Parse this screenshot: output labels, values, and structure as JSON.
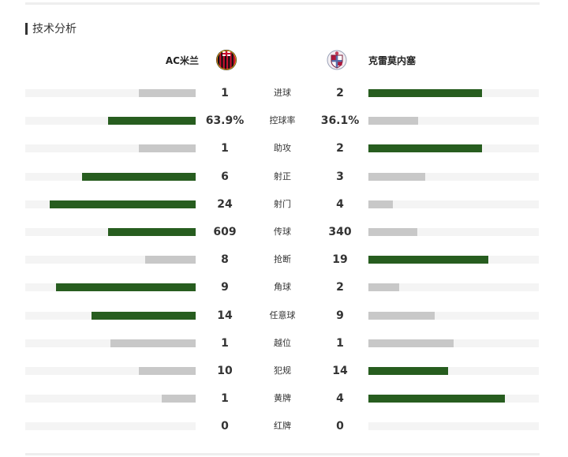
{
  "section": {
    "title": "技术分析"
  },
  "teams": {
    "home": {
      "name": "AC米兰",
      "logo_icon": "ac-milan-crest-icon"
    },
    "away": {
      "name": "克雷莫内塞",
      "logo_icon": "cremonese-crest-icon"
    }
  },
  "colors": {
    "leader": "#275d1f",
    "trailer": "#c8c8c8",
    "track": "#f4f4f4"
  },
  "stats": [
    {
      "label": "进球",
      "home": "1",
      "away": "2",
      "home_share": 0.333,
      "away_share": 0.667
    },
    {
      "label": "控球率",
      "home": "63.9%",
      "away": "36.1%",
      "home_share": 0.514,
      "away_share": 0.292
    },
    {
      "label": "助攻",
      "home": "1",
      "away": "2",
      "home_share": 0.333,
      "away_share": 0.667
    },
    {
      "label": "射正",
      "home": "6",
      "away": "3",
      "home_share": 0.667,
      "away_share": 0.333
    },
    {
      "label": "射门",
      "home": "24",
      "away": "4",
      "home_share": 0.857,
      "away_share": 0.143
    },
    {
      "label": "传球",
      "home": "609",
      "away": "340",
      "home_share": 0.514,
      "away_share": 0.287
    },
    {
      "label": "抢断",
      "home": "8",
      "away": "19",
      "home_share": 0.296,
      "away_share": 0.704
    },
    {
      "label": "角球",
      "home": "9",
      "away": "2",
      "home_share": 0.818,
      "away_share": 0.182
    },
    {
      "label": "任意球",
      "home": "14",
      "away": "9",
      "home_share": 0.609,
      "away_share": 0.391
    },
    {
      "label": "越位",
      "home": "1",
      "away": "1",
      "home_share": 0.5,
      "away_share": 0.5
    },
    {
      "label": "犯规",
      "home": "10",
      "away": "14",
      "home_share": 0.333,
      "away_share": 0.467
    },
    {
      "label": "黄牌",
      "home": "1",
      "away": "4",
      "home_share": 0.2,
      "away_share": 0.8
    },
    {
      "label": "红牌",
      "home": "0",
      "away": "0",
      "home_share": 0,
      "away_share": 0
    }
  ]
}
